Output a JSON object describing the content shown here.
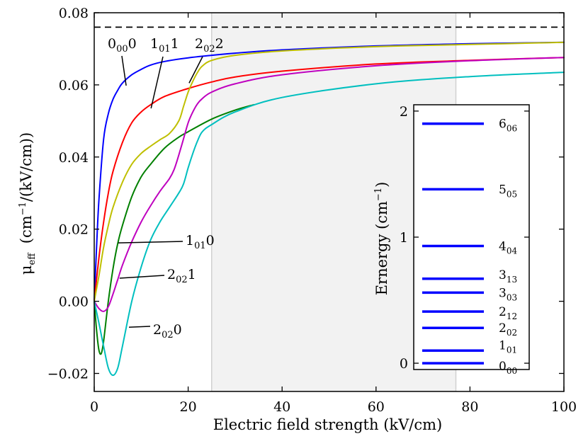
{
  "chart_data": [
    {
      "type": "line",
      "xlabel": "Electric field strength (kV/cm)",
      "ylabel": "μ",
      "ylabel_sub": "eff",
      "ylabel_units_pre": "(cm",
      "ylabel_units_exp": "−1",
      "ylabel_units_post": "/(kV/cm))",
      "xlim": [
        0,
        100
      ],
      "ylim": [
        -0.025,
        0.08
      ],
      "xticks": [
        0,
        20,
        40,
        60,
        80,
        100
      ],
      "xtick_labels": [
        "0",
        "20",
        "40",
        "60",
        "80",
        "100"
      ],
      "yticks": [
        -0.02,
        0.0,
        0.02,
        0.04,
        0.06,
        0.08
      ],
      "ytick_labels": [
        "−0.02",
        "0.00",
        "0.02",
        "0.04",
        "0.06",
        "0.08"
      ],
      "shaded_region": [
        25,
        77
      ],
      "asymptote": 0.076,
      "series": [
        {
          "name": "0000",
          "label_pre": "0",
          "label_sub": "00",
          "label_post": "0",
          "color": "#0000ff",
          "x": [
            0,
            0.5,
            1,
            2,
            3,
            4,
            5,
            6,
            8,
            10,
            12,
            15,
            20,
            25,
            30,
            40,
            60,
            80,
            100
          ],
          "y": [
            0.0,
            0.015,
            0.028,
            0.045,
            0.052,
            0.056,
            0.0585,
            0.0605,
            0.0628,
            0.0643,
            0.0655,
            0.0665,
            0.0675,
            0.0682,
            0.0688,
            0.0697,
            0.0708,
            0.0714,
            0.0718
          ]
        },
        {
          "name": "1011",
          "label_pre": "1",
          "label_sub": "01",
          "label_post": "1",
          "color": "#ff0000",
          "x": [
            0,
            1,
            2,
            3,
            4,
            6,
            8,
            10,
            12,
            15,
            20,
            25,
            30,
            40,
            60,
            80,
            100
          ],
          "y": [
            0.0,
            0.012,
            0.022,
            0.03,
            0.036,
            0.044,
            0.0495,
            0.0525,
            0.0545,
            0.0568,
            0.059,
            0.0608,
            0.0622,
            0.0638,
            0.0658,
            0.0668,
            0.0676
          ]
        },
        {
          "name": "2022",
          "label_pre": "2",
          "label_sub": "02",
          "label_post": "2",
          "color": "#bfbf00",
          "x": [
            0,
            1,
            2,
            3,
            4,
            6,
            8,
            10,
            12,
            14,
            16,
            18,
            19,
            20,
            21,
            22,
            23,
            25,
            30,
            40,
            60,
            80,
            100
          ],
          "y": [
            0.0,
            0.007,
            0.015,
            0.021,
            0.026,
            0.033,
            0.038,
            0.041,
            0.043,
            0.0448,
            0.0465,
            0.05,
            0.054,
            0.058,
            0.061,
            0.0635,
            0.0652,
            0.0668,
            0.0682,
            0.0694,
            0.0706,
            0.0712,
            0.0718
          ]
        },
        {
          "name": "1010",
          "label_pre": "1",
          "label_sub": "01",
          "label_post": "0",
          "color": "#008000",
          "x": [
            0,
            0.5,
            1,
            1.5,
            2,
            3,
            4,
            5,
            6,
            8,
            10,
            12,
            15,
            18,
            20,
            25,
            30,
            34
          ],
          "y": [
            0.0,
            -0.008,
            -0.0135,
            -0.0145,
            -0.011,
            0.0,
            0.009,
            0.016,
            0.021,
            0.029,
            0.0345,
            0.038,
            0.0425,
            0.0455,
            0.047,
            0.0505,
            0.053,
            0.0545
          ]
        },
        {
          "name": "2021",
          "label_pre": "2",
          "label_sub": "02",
          "label_post": "1",
          "color": "#bf00bf",
          "x": [
            0,
            1,
            2,
            3,
            4,
            5,
            6,
            8,
            10,
            12,
            14,
            16,
            17,
            18,
            19,
            20,
            21,
            22,
            23,
            25,
            30,
            40,
            60,
            80,
            100
          ],
          "y": [
            0.0,
            -0.002,
            -0.0028,
            -0.0015,
            0.002,
            0.006,
            0.01,
            0.0165,
            0.022,
            0.0265,
            0.0305,
            0.034,
            0.0365,
            0.0405,
            0.045,
            0.0495,
            0.0525,
            0.0548,
            0.0562,
            0.058,
            0.0603,
            0.0628,
            0.0653,
            0.0667,
            0.0676
          ]
        },
        {
          "name": "2020",
          "label_pre": "2",
          "label_sub": "02",
          "label_post": "0",
          "color": "#00bfbf",
          "x": [
            0,
            1,
            2,
            3,
            4,
            5,
            6,
            8,
            10,
            12,
            14,
            16,
            18,
            19,
            20,
            21,
            22,
            23,
            25,
            30,
            40,
            60,
            80,
            100
          ],
          "y": [
            0.0,
            -0.006,
            -0.0125,
            -0.0185,
            -0.0205,
            -0.0185,
            -0.0125,
            0.0,
            0.0095,
            0.017,
            0.022,
            0.026,
            0.03,
            0.0325,
            0.037,
            0.041,
            0.0445,
            0.047,
            0.049,
            0.0525,
            0.0565,
            0.0603,
            0.0623,
            0.0635
          ]
        }
      ],
      "annotations": [
        {
          "series": "0000",
          "at": [
            6.8,
            0.0598
          ]
        },
        {
          "series": "1011",
          "at": [
            12.1,
            0.0535
          ]
        },
        {
          "series": "2022",
          "at": [
            20.2,
            0.0605
          ]
        },
        {
          "series": "1010",
          "at": [
            5.1,
            0.0162
          ]
        },
        {
          "series": "2021",
          "at": [
            5.4,
            0.0064
          ]
        },
        {
          "series": "2020",
          "at": [
            7.4,
            -0.0072
          ]
        }
      ]
    },
    {
      "type": "energy-levels",
      "ylabel": "Ernergy (cm",
      "ylabel_exp": "−1",
      "ylabel_close": ")",
      "ylim": [
        -0.05,
        2.05
      ],
      "yticks": [
        0,
        1,
        2
      ],
      "ytick_labels": [
        "0",
        "1",
        "2"
      ],
      "color": "#0000ff",
      "levels": [
        {
          "pre": "0",
          "sub": "00",
          "energy": 0.0
        },
        {
          "pre": "1",
          "sub": "01",
          "energy": 0.1
        },
        {
          "pre": "2",
          "sub": "02",
          "energy": 0.28
        },
        {
          "pre": "2",
          "sub": "12",
          "energy": 0.41
        },
        {
          "pre": "3",
          "sub": "03",
          "energy": 0.56
        },
        {
          "pre": "3",
          "sub": "13",
          "energy": 0.67
        },
        {
          "pre": "4",
          "sub": "04",
          "energy": 0.93
        },
        {
          "pre": "5",
          "sub": "05",
          "energy": 1.38
        },
        {
          "pre": "6",
          "sub": "06",
          "energy": 1.9
        }
      ]
    }
  ]
}
